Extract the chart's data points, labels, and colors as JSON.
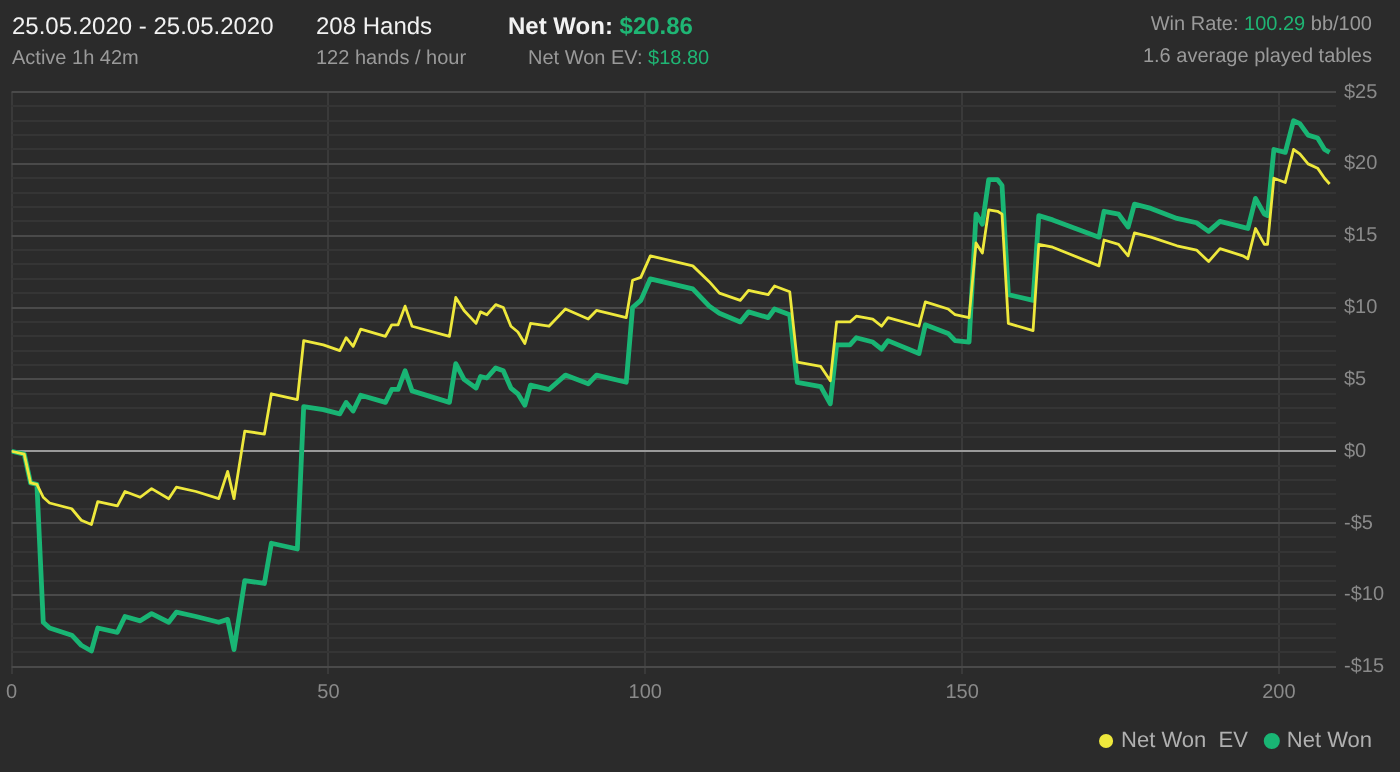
{
  "chart_data": {
    "type": "line",
    "title": "25.05.2020 - 25.05.2020",
    "subtitle": "Active 1h 42m",
    "annotations": [
      "208 Hands",
      "122 hands / hour",
      "Net Won: $20.86",
      "Net Won  EV: $18.80",
      "Win Rate: 100.29 bb/100",
      "1.6 average played tables"
    ],
    "x": [
      0,
      2,
      3,
      4,
      5,
      6,
      9.5,
      11,
      12.6,
      13.6,
      16.7,
      17.9,
      20.3,
      22.1,
      24.8,
      26,
      29.1,
      32.7,
      34.1,
      35.1,
      36.8,
      39.9,
      41,
      45.1,
      46.1,
      49.2,
      51.8,
      52.8,
      53.9,
      55.1,
      59,
      60,
      61,
      62.1,
      63.2,
      69.1,
      70.1,
      71.4,
      73.3,
      74,
      75,
      76.4,
      77.6,
      78.8,
      79.9,
      81,
      81.9,
      84.8,
      87.4,
      91,
      92.3,
      97,
      98,
      99.3,
      100.8,
      107.5,
      110.1,
      111.7,
      115,
      116.3,
      119.4,
      120.4,
      122.8,
      124,
      127.7,
      129.2,
      130.2,
      132.3,
      133.3,
      135.9,
      137.3,
      138.3,
      143.2,
      144.2,
      147.8,
      148.9,
      151.1,
      152.2,
      153.2,
      154.2,
      155.6,
      156.3,
      157.3,
      161.2,
      162.1,
      164.3,
      171.6,
      172.4,
      174.7,
      176.2,
      177.2,
      179.8,
      183.9,
      187,
      188.9,
      190.7,
      194.3,
      195.1,
      196.3,
      197.7,
      198.2,
      199.2,
      201,
      202.3,
      203.3,
      204.6,
      206.1,
      207.2,
      208
    ],
    "series": [
      {
        "name": "Net Won",
        "color": "#19b574",
        "values": [
          0,
          -0.2,
          -2.2,
          -2.3,
          -11.9,
          -12.3,
          -12.8,
          -13.5,
          -13.9,
          -12.3,
          -12.6,
          -11.5,
          -11.8,
          -11.3,
          -11.9,
          -11.2,
          -11.5,
          -11.9,
          -11.7,
          -13.8,
          -9,
          -9.2,
          -6.4,
          -6.8,
          3.1,
          2.9,
          2.6,
          3.4,
          2.8,
          3.9,
          3.4,
          4.3,
          4.3,
          5.6,
          4.2,
          3.4,
          6.1,
          5,
          4.4,
          5.2,
          5.1,
          5.8,
          5.6,
          4.4,
          4,
          3.2,
          4.6,
          4.3,
          5.3,
          4.7,
          5.3,
          4.8,
          10,
          10.5,
          12,
          11.3,
          10.1,
          9.6,
          9,
          9.7,
          9.3,
          9.9,
          9.5,
          4.8,
          4.5,
          3.3,
          7.4,
          7.4,
          7.9,
          7.6,
          7.1,
          7.7,
          6.8,
          8.8,
          8.2,
          7.7,
          7.6,
          16.5,
          15.8,
          18.9,
          18.9,
          18.5,
          10.9,
          10.5,
          16.4,
          16.1,
          14.9,
          16.7,
          16.5,
          15.6,
          17.2,
          16.9,
          16.2,
          15.9,
          15.3,
          16,
          15.6,
          15.5,
          17.6,
          16.5,
          16.4,
          21,
          20.8,
          23,
          22.8,
          22,
          21.8,
          21,
          20.8
        ]
      },
      {
        "name": "Net Won  EV",
        "color": "#eee83c",
        "values": [
          0,
          -0.2,
          -2.2,
          -2.3,
          -3.2,
          -3.6,
          -4,
          -4.8,
          -5.1,
          -3.5,
          -3.8,
          -2.8,
          -3.2,
          -2.6,
          -3.3,
          -2.5,
          -2.8,
          -3.3,
          -1.4,
          -3.3,
          1.4,
          1.2,
          4,
          3.6,
          7.7,
          7.4,
          7,
          7.9,
          7.3,
          8.5,
          8,
          8.8,
          8.8,
          10.1,
          8.7,
          8,
          10.7,
          9.8,
          8.9,
          9.7,
          9.5,
          10.2,
          10,
          8.7,
          8.3,
          7.5,
          8.9,
          8.7,
          9.9,
          9.2,
          9.8,
          9.3,
          11.9,
          12.1,
          13.6,
          12.9,
          11.8,
          11,
          10.5,
          11.2,
          10.9,
          11.5,
          11.1,
          6.2,
          5.9,
          4.9,
          9,
          9,
          9.4,
          9.2,
          8.7,
          9.3,
          8.7,
          10.4,
          9.9,
          9.5,
          9.3,
          14.5,
          13.8,
          16.8,
          16.7,
          16.5,
          8.9,
          8.4,
          14.4,
          14.2,
          12.9,
          14.7,
          14.4,
          13.6,
          15.2,
          14.9,
          14.3,
          14,
          13.2,
          14.1,
          13.6,
          13.4,
          15.5,
          14.4,
          14.4,
          19,
          18.7,
          21,
          20.7,
          20,
          19.7,
          19,
          18.6
        ]
      }
    ],
    "xlim": [
      0,
      209
    ],
    "xticks": [
      0,
      50,
      100,
      150,
      200
    ],
    "ylim": [
      -15.5,
      25
    ],
    "yticks": [
      {
        "value": -15,
        "label": "-$15"
      },
      {
        "value": -14,
        "label": null
      },
      {
        "value": -13,
        "label": null
      },
      {
        "value": -12,
        "label": null
      },
      {
        "value": -11,
        "label": null
      },
      {
        "value": -10,
        "label": "-$10"
      },
      {
        "value": -9,
        "label": null
      },
      {
        "value": -8,
        "label": null
      },
      {
        "value": -7,
        "label": null
      },
      {
        "value": -6,
        "label": null
      },
      {
        "value": -5,
        "label": "-$5"
      },
      {
        "value": -4,
        "label": null
      },
      {
        "value": -3,
        "label": null
      },
      {
        "value": -2,
        "label": null
      },
      {
        "value": -1,
        "label": null
      },
      {
        "value": 0,
        "label": "$0"
      },
      {
        "value": 1,
        "label": null
      },
      {
        "value": 2,
        "label": null
      },
      {
        "value": 3,
        "label": null
      },
      {
        "value": 4,
        "label": null
      },
      {
        "value": 5,
        "label": "$5"
      },
      {
        "value": 6,
        "label": null
      },
      {
        "value": 7,
        "label": null
      },
      {
        "value": 8,
        "label": null
      },
      {
        "value": 9,
        "label": null
      },
      {
        "value": 10,
        "label": "$10"
      },
      {
        "value": 11,
        "label": null
      },
      {
        "value": 12,
        "label": null
      },
      {
        "value": 13,
        "label": null
      },
      {
        "value": 14,
        "label": null
      },
      {
        "value": 15,
        "label": "$15"
      },
      {
        "value": 16,
        "label": null
      },
      {
        "value": 17,
        "label": null
      },
      {
        "value": 18,
        "label": null
      },
      {
        "value": 19,
        "label": null
      },
      {
        "value": 20,
        "label": "$20"
      },
      {
        "value": 21,
        "label": null
      },
      {
        "value": 22,
        "label": null
      },
      {
        "value": 23,
        "label": null
      },
      {
        "value": 24,
        "label": null
      },
      {
        "value": 25,
        "label": "$25"
      }
    ],
    "grid": true,
    "legend": "bottom right",
    "marker": "none",
    "line_style": "solid"
  }
}
